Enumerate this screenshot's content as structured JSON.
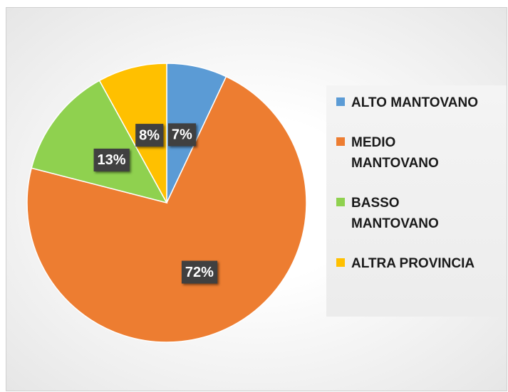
{
  "chart_data": {
    "type": "pie",
    "categories": [
      "ALTO MANTOVANO",
      "MEDIO MANTOVANO",
      "BASSO MANTOVANO",
      "ALTRA PROVINCIA"
    ],
    "values": [
      7,
      72,
      13,
      8
    ],
    "value_labels": [
      "7%",
      "72%",
      "13%",
      "8%"
    ],
    "colors": [
      "#5b9bd5",
      "#ed7d31",
      "#8fd14f",
      "#ffc000"
    ],
    "legend": "right"
  }
}
